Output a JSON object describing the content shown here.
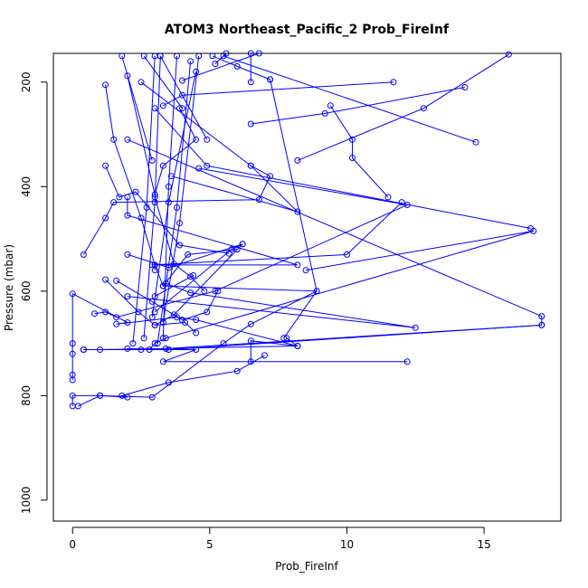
{
  "chart_data": {
    "type": "scatter",
    "title": "ATOM3 Northeast_Pacific_2 Prob_FireInf",
    "xlabel": "Prob_FireInf",
    "ylabel": "Pressure (mbar)",
    "xlim": [
      -0.7,
      17.8
    ],
    "ylim": [
      1040,
      145
    ],
    "y_reversed": true,
    "x_ticks": [
      0,
      5,
      10,
      15
    ],
    "y_ticks": [
      200,
      400,
      600,
      800,
      1000
    ],
    "grid": false,
    "colors": {
      "series": "#0000ff",
      "axes": "#000000",
      "background": "#ffffff"
    },
    "series": [
      {
        "points": [
          [
            0.0,
            820
          ],
          [
            0.0,
            800
          ],
          [
            1.0,
            800
          ],
          [
            2.0,
            803
          ],
          [
            1.8,
            800
          ],
          [
            3.5,
            775
          ],
          [
            6.0,
            753
          ],
          [
            7.0,
            723
          ]
        ]
      },
      {
        "points": [
          [
            0.0,
            770
          ],
          [
            0.0,
            760
          ],
          [
            0.0,
            720
          ],
          [
            0.0,
            700
          ],
          [
            0.0,
            605
          ],
          [
            2.0,
            660
          ],
          [
            1.6,
            663
          ],
          [
            3.8,
            650
          ],
          [
            4.5,
            655
          ],
          [
            8.2,
            705
          ],
          [
            7.8,
            690
          ]
        ]
      },
      {
        "points": [
          [
            0.2,
            820
          ],
          [
            1.0,
            800
          ],
          [
            2.9,
            803
          ],
          [
            5.5,
            700
          ],
          [
            6.5,
            663
          ],
          [
            8.9,
            600
          ],
          [
            7.2,
            195
          ]
        ]
      },
      {
        "points": [
          [
            0.4,
            712
          ],
          [
            2.5,
            712
          ],
          [
            4.5,
            712
          ],
          [
            3.3,
            735
          ],
          [
            12.2,
            735
          ],
          [
            6.5,
            735
          ],
          [
            6.5,
            695
          ],
          [
            8.2,
            705
          ],
          [
            1.0,
            712
          ],
          [
            0.4,
            712
          ]
        ]
      },
      {
        "points": [
          [
            0.8,
            643
          ],
          [
            1.2,
            640
          ],
          [
            1.6,
            650
          ],
          [
            5.2,
            600
          ],
          [
            12.2,
            435
          ],
          [
            4.6,
            365
          ]
        ]
      },
      {
        "points": [
          [
            0.4,
            530
          ],
          [
            1.2,
            460
          ],
          [
            1.5,
            430
          ],
          [
            6.8,
            425
          ],
          [
            7.2,
            380
          ],
          [
            6.5,
            360
          ]
        ]
      },
      {
        "points": [
          [
            1.2,
            205
          ],
          [
            1.5,
            310
          ],
          [
            2.5,
            460
          ],
          [
            3.0,
            550
          ],
          [
            3.3,
            590
          ],
          [
            4.2,
            530
          ],
          [
            6.0,
            520
          ]
        ]
      },
      {
        "points": [
          [
            2.0,
            188
          ],
          [
            3.0,
            415
          ],
          [
            3.3,
            360
          ],
          [
            4.5,
            310
          ],
          [
            3.9,
            250
          ]
        ]
      },
      {
        "points": [
          [
            1.2,
            360
          ],
          [
            1.7,
            420
          ],
          [
            2.3,
            410
          ],
          [
            3.9,
            512
          ],
          [
            5.7,
            528
          ]
        ]
      },
      {
        "points": [
          [
            1.2,
            578
          ],
          [
            2.4,
            640
          ],
          [
            3.0,
            665
          ],
          [
            4.1,
            660
          ],
          [
            4.5,
            680
          ]
        ]
      },
      {
        "points": [
          [
            2.0,
            420
          ],
          [
            2.0,
            455
          ],
          [
            8.2,
            550
          ],
          [
            3.0,
            550
          ],
          [
            3.0,
            560
          ]
        ]
      },
      {
        "points": [
          [
            2.0,
            530
          ],
          [
            3.5,
            555
          ],
          [
            6.2,
            510
          ],
          [
            3.7,
            645
          ],
          [
            3.0,
            665
          ]
        ]
      },
      {
        "points": [
          [
            1.6,
            580
          ],
          [
            2.9,
            620
          ],
          [
            4.0,
            655
          ],
          [
            4.9,
            640
          ],
          [
            5.3,
            600
          ]
        ]
      },
      {
        "points": [
          [
            2.0,
            310
          ],
          [
            17.1,
            648
          ],
          [
            17.1,
            665
          ],
          [
            3.5,
            712
          ],
          [
            2.0,
            710
          ]
        ]
      },
      {
        "points": [
          [
            3.0,
            420
          ],
          [
            3.7,
            548
          ],
          [
            4.3,
            572
          ],
          [
            4.8,
            600
          ]
        ]
      },
      {
        "points": [
          [
            2.0,
            610
          ],
          [
            12.5,
            670
          ],
          [
            4.3,
            603
          ],
          [
            3.4,
            585
          ]
        ]
      },
      {
        "points": [
          [
            2.8,
            712
          ],
          [
            3.0,
            700
          ],
          [
            3.4,
            690
          ],
          [
            16.8,
            485
          ],
          [
            8.5,
            560
          ]
        ]
      },
      {
        "points": [
          [
            3.0,
            250
          ],
          [
            4.9,
            360
          ],
          [
            16.7,
            480
          ]
        ]
      },
      {
        "points": [
          [
            3.4,
            710
          ],
          [
            17.1,
            665
          ]
        ]
      },
      {
        "points": [
          [
            3.3,
            590
          ],
          [
            8.9,
            600
          ],
          [
            7.7,
            690
          ]
        ]
      },
      {
        "points": [
          [
            3.0,
            610
          ],
          [
            4.4,
            570
          ]
        ]
      },
      {
        "points": [
          [
            3.0,
            640
          ],
          [
            5.8,
            520
          ],
          [
            6.2,
            510
          ]
        ]
      },
      {
        "points": [
          [
            2.9,
            550
          ],
          [
            10.0,
            530
          ],
          [
            12.0,
            430
          ]
        ]
      },
      {
        "points": [
          [
            4.0,
            197
          ],
          [
            6.8,
            145
          ]
        ]
      },
      {
        "points": [
          [
            4.0,
            250
          ],
          [
            2.6,
            150
          ]
        ]
      },
      {
        "points": [
          [
            4.9,
            310
          ],
          [
            3.2,
            150
          ]
        ]
      },
      {
        "points": [
          [
            5.2,
            165
          ],
          [
            5.6,
            145
          ]
        ]
      },
      {
        "points": [
          [
            6.5,
            200
          ],
          [
            6.5,
            145
          ]
        ]
      },
      {
        "points": [
          [
            7.2,
            195
          ],
          [
            6.0,
            170
          ],
          [
            5.1,
            150
          ]
        ]
      },
      {
        "points": [
          [
            9.4,
            245
          ],
          [
            10.2,
            310
          ],
          [
            10.2,
            345
          ],
          [
            11.5,
            420
          ]
        ]
      },
      {
        "points": [
          [
            11.7,
            200
          ],
          [
            4.0,
            225
          ],
          [
            3.3,
            245
          ]
        ]
      },
      {
        "points": [
          [
            14.3,
            210
          ],
          [
            9.2,
            260
          ],
          [
            6.5,
            280
          ]
        ]
      },
      {
        "points": [
          [
            14.7,
            315
          ],
          [
            5.5,
            150
          ]
        ]
      },
      {
        "points": [
          [
            15.9,
            147
          ],
          [
            12.8,
            250
          ],
          [
            8.2,
            350
          ]
        ]
      },
      {
        "points": [
          [
            2.5,
            200
          ],
          [
            6.5,
            360
          ],
          [
            8.2,
            448
          ],
          [
            3.6,
            380
          ]
        ]
      },
      {
        "points": [
          [
            2.9,
            350
          ],
          [
            1.8,
            150
          ]
        ]
      },
      {
        "points": [
          [
            2.9,
            650
          ],
          [
            3.5,
            430
          ],
          [
            4.5,
            180
          ]
        ]
      },
      {
        "points": [
          [
            3.1,
            700
          ],
          [
            3.8,
            440
          ],
          [
            4.3,
            160
          ]
        ]
      },
      {
        "points": [
          [
            3.3,
            660
          ],
          [
            3.9,
            470
          ],
          [
            4.6,
            150
          ]
        ]
      },
      {
        "points": [
          [
            3.3,
            690
          ],
          [
            3.5,
            400
          ],
          [
            3.8,
            150
          ]
        ]
      },
      {
        "points": [
          [
            2.6,
            690
          ],
          [
            3.0,
            430
          ],
          [
            3.2,
            150
          ]
        ]
      },
      {
        "points": [
          [
            2.2,
            700
          ],
          [
            2.7,
            440
          ],
          [
            3.0,
            150
          ]
        ]
      }
    ]
  }
}
